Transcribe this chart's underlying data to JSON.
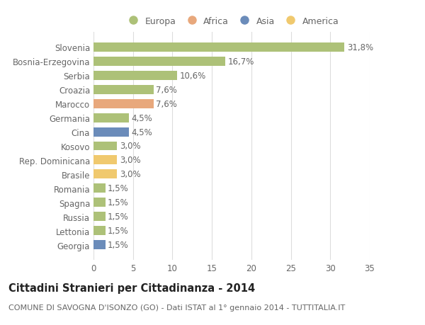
{
  "categories": [
    "Slovenia",
    "Bosnia-Erzegovina",
    "Serbia",
    "Croazia",
    "Marocco",
    "Germania",
    "Cina",
    "Kosovo",
    "Rep. Dominicana",
    "Brasile",
    "Romania",
    "Spagna",
    "Russia",
    "Lettonia",
    "Georgia"
  ],
  "values": [
    31.8,
    16.7,
    10.6,
    7.6,
    7.6,
    4.5,
    4.5,
    3.0,
    3.0,
    3.0,
    1.5,
    1.5,
    1.5,
    1.5,
    1.5
  ],
  "labels": [
    "31,8%",
    "16,7%",
    "10,6%",
    "7,6%",
    "7,6%",
    "4,5%",
    "4,5%",
    "3,0%",
    "3,0%",
    "3,0%",
    "1,5%",
    "1,5%",
    "1,5%",
    "1,5%",
    "1,5%"
  ],
  "colors": [
    "#adc178",
    "#adc178",
    "#adc178",
    "#adc178",
    "#e8a87c",
    "#adc178",
    "#6b8cba",
    "#adc178",
    "#f0c96e",
    "#f0c96e",
    "#adc178",
    "#adc178",
    "#adc178",
    "#adc178",
    "#6b8cba"
  ],
  "legend_labels": [
    "Europa",
    "Africa",
    "Asia",
    "America"
  ],
  "legend_colors": [
    "#adc178",
    "#e8a87c",
    "#6b8cba",
    "#f0c96e"
  ],
  "title": "Cittadini Stranieri per Cittadinanza - 2014",
  "subtitle": "COMUNE DI SAVOGNA D'ISONZO (GO) - Dati ISTAT al 1° gennaio 2014 - TUTTITALIA.IT",
  "xlim": [
    0,
    35
  ],
  "xticks": [
    0,
    5,
    10,
    15,
    20,
    25,
    30,
    35
  ],
  "background_color": "#ffffff",
  "grid_color": "#dddddd",
  "bar_height": 0.65,
  "title_fontsize": 10.5,
  "subtitle_fontsize": 8,
  "tick_fontsize": 8.5,
  "label_fontsize": 8.5
}
